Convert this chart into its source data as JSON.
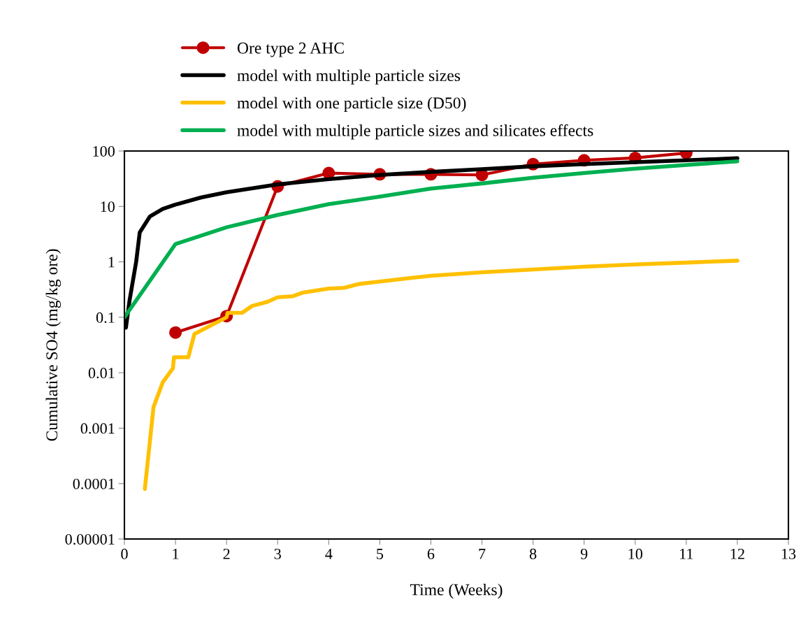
{
  "chart_data": {
    "type": "line",
    "xlabel": "Time (Weeks)",
    "ylabel": "Cumulative SO4 (mg/kg ore)",
    "log": "y",
    "grid": false,
    "legend": "top",
    "xlim": [
      0,
      13
    ],
    "xticks": [
      0,
      1,
      2,
      3,
      4,
      5,
      6,
      7,
      8,
      9,
      10,
      11,
      12,
      13
    ],
    "ylim": [
      1e-05,
      100
    ],
    "yticks": [
      {
        "value": 1e-05,
        "label": "0.00001"
      },
      0.0001,
      0.001,
      0.01,
      0.1,
      1,
      10,
      100
    ],
    "series": [
      {
        "name": "Ore type 2 AHC",
        "color": "#c00000",
        "marker": "circle",
        "x": [
          1,
          2,
          3,
          4,
          5,
          6,
          7,
          8,
          9,
          10,
          11
        ],
        "values": [
          0.053,
          0.105,
          23,
          40,
          38,
          38,
          37,
          58,
          68,
          75,
          92
        ]
      },
      {
        "name": "model with multiple particle sizes",
        "color": "#000000",
        "marker": "none",
        "x": [
          0.03,
          0.1,
          0.23,
          0.3,
          0.5,
          0.75,
          1,
          1.5,
          2,
          3,
          4,
          5,
          6,
          7,
          8,
          9,
          10,
          11,
          12
        ],
        "values": [
          0.065,
          0.2,
          1.0,
          3.4,
          6.6,
          9.0,
          10.8,
          14.5,
          18,
          25,
          31,
          37,
          42,
          47,
          53,
          58,
          63,
          68,
          74
        ]
      },
      {
        "name": "model with one particle size (D50)",
        "color": "#ffc000",
        "marker": "none",
        "x": [
          0.4,
          0.57,
          0.75,
          0.95,
          0.97,
          1.25,
          1.37,
          2.0,
          2.02,
          2.3,
          2.5,
          2.8,
          3.0,
          3.3,
          3.5,
          4.0,
          4.3,
          4.6,
          5.0,
          5.5,
          6.0,
          7.0,
          8.0,
          9.0,
          10.0,
          11.0,
          12.0
        ],
        "values": [
          8e-05,
          0.0024,
          0.0067,
          0.012,
          0.019,
          0.019,
          0.05,
          0.1,
          0.12,
          0.12,
          0.16,
          0.19,
          0.23,
          0.24,
          0.28,
          0.33,
          0.34,
          0.4,
          0.44,
          0.5,
          0.56,
          0.65,
          0.73,
          0.82,
          0.9,
          0.97,
          1.05
        ]
      },
      {
        "name": "model with multiple particle sizes and silicates effects",
        "color": "#00b050",
        "marker": "none",
        "x": [
          0,
          1,
          2,
          3,
          4,
          5,
          6,
          7,
          8,
          9,
          10,
          11,
          12
        ],
        "values": [
          0.1,
          2.1,
          4.2,
          7,
          11,
          15,
          21,
          26,
          33,
          40,
          48,
          56,
          65
        ]
      }
    ]
  }
}
